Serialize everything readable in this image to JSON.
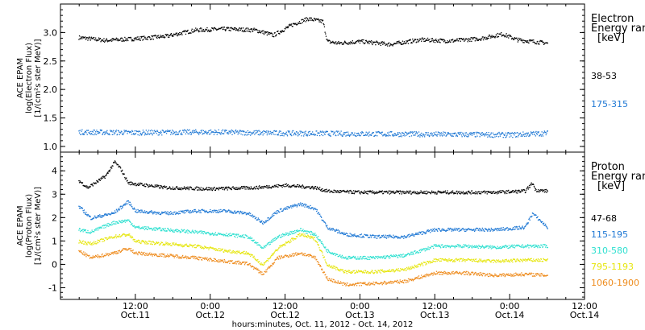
{
  "x_axis": {
    "title": "hours:minutes, Oct. 11, 2012 - Oct. 14, 2012",
    "ticks": [
      {
        "t": 0.5,
        "time": "12:00",
        "date": "Oct.11"
      },
      {
        "t": 1.0,
        "time": "0:00",
        "date": "Oct.12"
      },
      {
        "t": 1.5,
        "time": "12:00",
        "date": "Oct.12"
      },
      {
        "t": 2.0,
        "time": "0:00",
        "date": "Oct.13"
      },
      {
        "t": 2.5,
        "time": "12:00",
        "date": "Oct.13"
      },
      {
        "t": 3.0,
        "time": "0:00",
        "date": "Oct.14"
      },
      {
        "t": 3.5,
        "time": "12:00",
        "date": "Oct.14"
      }
    ]
  },
  "chart_data": [
    {
      "type": "scatter",
      "panel": "electron",
      "ylabel": [
        "ACE EPAM",
        "log(Electron Flux)",
        "[1/(cm²s ster MeV)]"
      ],
      "ylim": [
        0.9,
        3.5
      ],
      "yticks": [
        "1.0",
        "1.5",
        "2.0",
        "2.5",
        "3.0"
      ],
      "ytick_values": [
        1.0,
        1.5,
        2.0,
        2.5,
        3.0
      ],
      "legend_title": [
        "Electron",
        "Energy ran",
        "[keV]"
      ],
      "series": [
        {
          "name": "38-53",
          "color": "#000000",
          "points": [
            [
              0.12,
              2.92
            ],
            [
              0.3,
              2.87
            ],
            [
              0.5,
              2.9
            ],
            [
              0.7,
              2.94
            ],
            [
              0.9,
              3.05
            ],
            [
              1.1,
              3.07
            ],
            [
              1.3,
              3.05
            ],
            [
              1.42,
              2.96
            ],
            [
              1.55,
              3.15
            ],
            [
              1.65,
              3.25
            ],
            [
              1.75,
              3.2
            ],
            [
              1.78,
              2.85
            ],
            [
              1.85,
              2.82
            ],
            [
              2.0,
              2.85
            ],
            [
              2.2,
              2.8
            ],
            [
              2.4,
              2.88
            ],
            [
              2.6,
              2.86
            ],
            [
              2.8,
              2.9
            ],
            [
              2.95,
              2.98
            ],
            [
              3.05,
              2.88
            ],
            [
              3.25,
              2.82
            ]
          ]
        },
        {
          "name": "175-315",
          "color": "#1f78d4",
          "points": [
            [
              0.12,
              1.26
            ],
            [
              0.5,
              1.25
            ],
            [
              1.0,
              1.26
            ],
            [
              1.5,
              1.24
            ],
            [
              2.0,
              1.23
            ],
            [
              2.5,
              1.22
            ],
            [
              3.0,
              1.21
            ],
            [
              3.25,
              1.24
            ]
          ]
        }
      ]
    },
    {
      "type": "scatter",
      "panel": "proton",
      "ylabel": [
        "ACE EPAM",
        "log(Proton Flux)",
        "[1/(cm²s ster MeV)]"
      ],
      "ylim": [
        -1.5,
        4.8
      ],
      "yticks": [
        "-1",
        "0",
        "1",
        "2",
        "3",
        "4"
      ],
      "ytick_values": [
        -1,
        0,
        1,
        2,
        3,
        4
      ],
      "legend_title": [
        "Proton",
        "Energy ran",
        "[keV]"
      ],
      "series": [
        {
          "name": "47-68",
          "color": "#000000",
          "points": [
            [
              0.12,
              3.6
            ],
            [
              0.18,
              3.3
            ],
            [
              0.3,
              3.8
            ],
            [
              0.36,
              4.4
            ],
            [
              0.4,
              4.1
            ],
            [
              0.45,
              3.5
            ],
            [
              0.7,
              3.3
            ],
            [
              1.0,
              3.25
            ],
            [
              1.3,
              3.3
            ],
            [
              1.5,
              3.4
            ],
            [
              1.7,
              3.3
            ],
            [
              1.78,
              3.15
            ],
            [
              2.0,
              3.1
            ],
            [
              2.5,
              3.1
            ],
            [
              2.9,
              3.1
            ],
            [
              3.1,
              3.15
            ],
            [
              3.15,
              3.5
            ],
            [
              3.17,
              3.2
            ],
            [
              3.25,
              3.15
            ]
          ]
        },
        {
          "name": "115-195",
          "color": "#1f78d4",
          "points": [
            [
              0.12,
              2.5
            ],
            [
              0.2,
              2.0
            ],
            [
              0.35,
              2.2
            ],
            [
              0.45,
              2.7
            ],
            [
              0.5,
              2.3
            ],
            [
              0.7,
              2.2
            ],
            [
              0.9,
              2.3
            ],
            [
              1.1,
              2.3
            ],
            [
              1.25,
              2.2
            ],
            [
              1.35,
              1.8
            ],
            [
              1.45,
              2.3
            ],
            [
              1.6,
              2.6
            ],
            [
              1.7,
              2.4
            ],
            [
              1.78,
              1.6
            ],
            [
              1.9,
              1.3
            ],
            [
              2.1,
              1.2
            ],
            [
              2.3,
              1.2
            ],
            [
              2.5,
              1.5
            ],
            [
              2.7,
              1.5
            ],
            [
              2.9,
              1.5
            ],
            [
              3.1,
              1.6
            ],
            [
              3.15,
              2.2
            ],
            [
              3.25,
              1.6
            ]
          ]
        },
        {
          "name": "310-580",
          "color": "#2ee0d0",
          "points": [
            [
              0.12,
              1.5
            ],
            [
              0.2,
              1.4
            ],
            [
              0.35,
              1.8
            ],
            [
              0.45,
              1.9
            ],
            [
              0.5,
              1.6
            ],
            [
              0.7,
              1.5
            ],
            [
              0.9,
              1.4
            ],
            [
              1.1,
              1.3
            ],
            [
              1.25,
              1.2
            ],
            [
              1.35,
              0.7
            ],
            [
              1.45,
              1.2
            ],
            [
              1.6,
              1.5
            ],
            [
              1.7,
              1.3
            ],
            [
              1.78,
              0.6
            ],
            [
              1.9,
              0.3
            ],
            [
              2.1,
              0.3
            ],
            [
              2.3,
              0.4
            ],
            [
              2.5,
              0.8
            ],
            [
              2.7,
              0.8
            ],
            [
              2.9,
              0.75
            ],
            [
              3.1,
              0.8
            ],
            [
              3.25,
              0.8
            ]
          ]
        },
        {
          "name": "795-1193",
          "color": "#e6e60f",
          "points": [
            [
              0.12,
              1.0
            ],
            [
              0.2,
              0.9
            ],
            [
              0.35,
              1.2
            ],
            [
              0.45,
              1.3
            ],
            [
              0.5,
              1.0
            ],
            [
              0.7,
              0.9
            ],
            [
              0.9,
              0.8
            ],
            [
              1.1,
              0.6
            ],
            [
              1.25,
              0.5
            ],
            [
              1.35,
              0.0
            ],
            [
              1.45,
              0.7
            ],
            [
              1.6,
              1.3
            ],
            [
              1.7,
              1.1
            ],
            [
              1.78,
              0.0
            ],
            [
              1.9,
              -0.3
            ],
            [
              2.1,
              -0.3
            ],
            [
              2.3,
              -0.2
            ],
            [
              2.5,
              0.2
            ],
            [
              2.7,
              0.2
            ],
            [
              2.9,
              0.15
            ],
            [
              3.1,
              0.2
            ],
            [
              3.25,
              0.2
            ]
          ]
        },
        {
          "name": "1060-1900",
          "color": "#ee8c1e",
          "points": [
            [
              0.12,
              0.6
            ],
            [
              0.2,
              0.3
            ],
            [
              0.35,
              0.5
            ],
            [
              0.45,
              0.7
            ],
            [
              0.5,
              0.5
            ],
            [
              0.7,
              0.4
            ],
            [
              0.9,
              0.3
            ],
            [
              1.1,
              0.15
            ],
            [
              1.25,
              0.05
            ],
            [
              1.35,
              -0.4
            ],
            [
              1.45,
              0.3
            ],
            [
              1.6,
              0.5
            ],
            [
              1.7,
              0.3
            ],
            [
              1.78,
              -0.6
            ],
            [
              1.9,
              -0.85
            ],
            [
              2.1,
              -0.8
            ],
            [
              2.3,
              -0.7
            ],
            [
              2.5,
              -0.35
            ],
            [
              2.7,
              -0.35
            ],
            [
              2.9,
              -0.45
            ],
            [
              3.1,
              -0.4
            ],
            [
              3.25,
              -0.45
            ]
          ]
        }
      ]
    }
  ]
}
